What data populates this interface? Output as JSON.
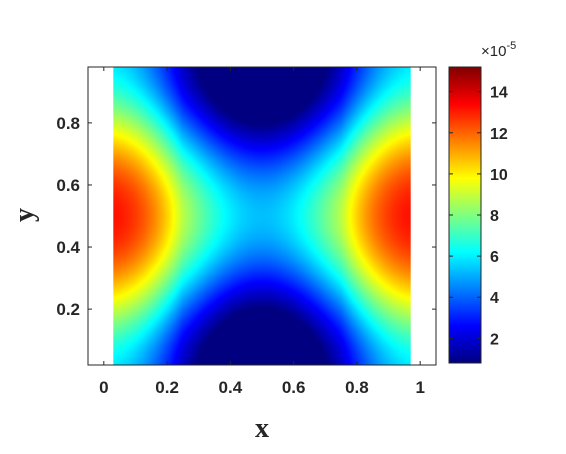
{
  "chart_data": {
    "type": "heatmap",
    "xlabel": "x",
    "ylabel": "y",
    "xlim": [
      -0.05,
      1.05
    ],
    "ylim": [
      0.02,
      0.98
    ],
    "data_extent": {
      "x": [
        0.03,
        0.97
      ],
      "y": [
        0.02,
        0.98
      ]
    },
    "x_ticks": [
      "0",
      "0.2",
      "0.4",
      "0.6",
      "0.8",
      "1"
    ],
    "x_tick_values": [
      0,
      0.2,
      0.4,
      0.6,
      0.8,
      1
    ],
    "y_ticks": [
      "0.2",
      "0.4",
      "0.6",
      "0.8"
    ],
    "y_tick_values": [
      0.2,
      0.4,
      0.6,
      0.8
    ],
    "colormap": "jet",
    "colorbar": {
      "range": [
        0.8,
        15.2
      ],
      "ticks": [
        "2",
        "4",
        "6",
        "8",
        "10",
        "12",
        "14"
      ],
      "tick_values": [
        2,
        4,
        6,
        8,
        10,
        12,
        14
      ],
      "multiplier_base": "×10",
      "multiplier_exponent": "-5"
    },
    "field_description_values": {
      "max_left": {
        "x": 0.03,
        "y": 0.5,
        "value": 15.0
      },
      "max_right": {
        "x": 0.97,
        "y": 0.5,
        "value": 15.0
      },
      "min_top": {
        "x": 0.5,
        "y": 0.98,
        "value": 1.0
      },
      "min_bottom": {
        "x": 0.5,
        "y": 0.02,
        "value": 1.0
      },
      "saddle_center": {
        "x": 0.5,
        "y": 0.5,
        "value": 5.3
      }
    },
    "grid": false,
    "legend": "none"
  },
  "colors": {
    "axes": "#262626",
    "background": "#ffffff"
  }
}
